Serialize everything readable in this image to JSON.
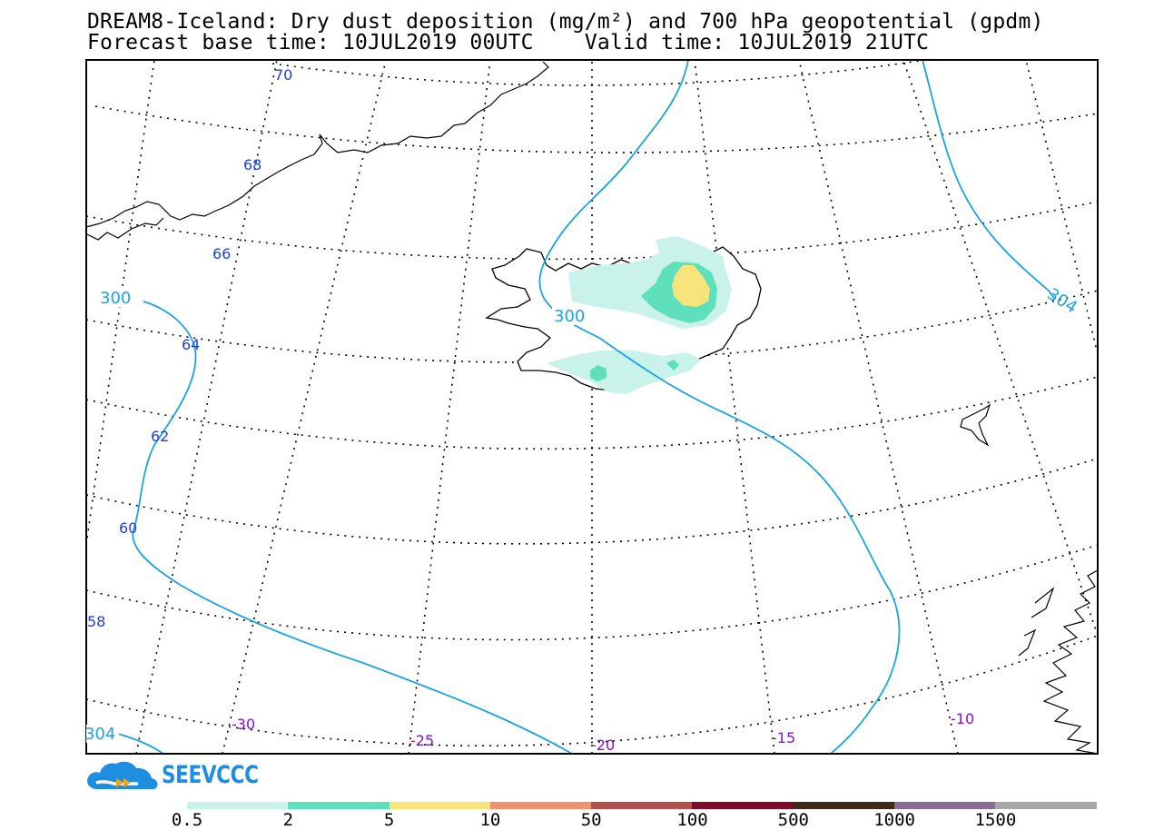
{
  "title": {
    "line1": "DREAM8-Iceland: Dry dust deposition (mg/m²) and 700 hPa geopotential (gpdm)",
    "line2": "Forecast base time: 10JUL2019 00UTC    Valid time: 10JUL2019 21UTC"
  },
  "map": {
    "region": "Iceland",
    "lat_labels": [
      "70",
      "68",
      "66",
      "64",
      "62",
      "60",
      "58"
    ],
    "lon_labels": [
      "-30",
      "-25",
      "-20",
      "-15",
      "-10"
    ],
    "contour_labels": {
      "c300_left": "300",
      "c300_mid": "300",
      "c304_right": "304",
      "c304_bottom": "304"
    },
    "colors": {
      "frame": "#000000",
      "contour": "#1aa3e8",
      "lat_label": "#1f3fe0",
      "lon_label": "#8a10c8"
    }
  },
  "logo": {
    "text": "SEEVCCC"
  },
  "colorbar": {
    "labels": [
      "0.5",
      "2",
      "5",
      "10",
      "50",
      "100",
      "500",
      "1000",
      "1500"
    ],
    "colors": [
      "#c8f2ea",
      "#5ee0bc",
      "#f8e47a",
      "#f0936c",
      "#b2504c",
      "#80082c",
      "#3e2a16",
      "#8c6a98",
      "#a8a8a8"
    ]
  }
}
